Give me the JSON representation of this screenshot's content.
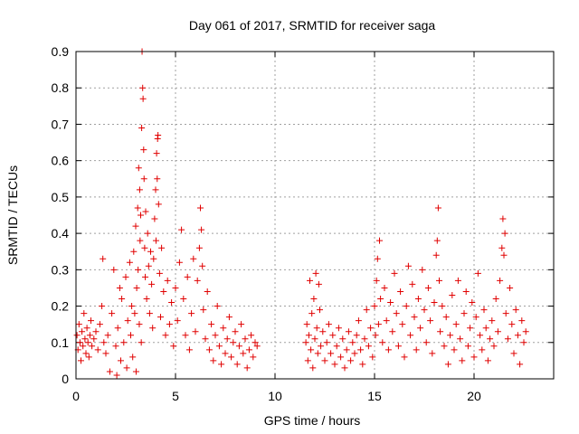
{
  "chart_data": {
    "type": "scatter",
    "title": "Day 061 of 2017, SRMTID for receiver saga",
    "xlabel": "GPS time / hours",
    "ylabel": "SRMTID / TECUs",
    "xlim": [
      0,
      24
    ],
    "ylim": [
      0,
      0.9
    ],
    "xticks": [
      0,
      5,
      10,
      15,
      20
    ],
    "yticks": [
      0,
      0.1,
      0.2,
      0.3,
      0.4,
      0.5,
      0.6,
      0.7,
      0.8,
      0.9
    ],
    "xtick_labels": [
      "0",
      "5",
      "10",
      "15",
      "20"
    ],
    "ytick_labels": [
      "0",
      "0.1",
      "0.2",
      "0.3",
      "0.4",
      "0.5",
      "0.6",
      "0.7",
      "0.8",
      "0.9"
    ],
    "grid": true,
    "color": "#e00000",
    "marker": "+",
    "series": [
      {
        "name": "SRMTID",
        "points": [
          [
            0.05,
            0.12
          ],
          [
            0.1,
            0.08
          ],
          [
            0.15,
            0.15
          ],
          [
            0.2,
            0.1
          ],
          [
            0.25,
            0.05
          ],
          [
            0.3,
            0.13
          ],
          [
            0.35,
            0.09
          ],
          [
            0.4,
            0.18
          ],
          [
            0.45,
            0.11
          ],
          [
            0.5,
            0.07
          ],
          [
            0.55,
            0.14
          ],
          [
            0.6,
            0.1
          ],
          [
            0.65,
            0.06
          ],
          [
            0.7,
            0.12
          ],
          [
            0.75,
            0.16
          ],
          [
            0.8,
            0.09
          ],
          [
            0.9,
            0.11
          ],
          [
            1.0,
            0.13
          ],
          [
            1.1,
            0.08
          ],
          [
            1.2,
            0.15
          ],
          [
            1.3,
            0.2
          ],
          [
            1.35,
            0.33
          ],
          [
            1.4,
            0.1
          ],
          [
            1.5,
            0.07
          ],
          [
            1.6,
            0.12
          ],
          [
            1.7,
            0.02
          ],
          [
            1.8,
            0.18
          ],
          [
            1.9,
            0.3
          ],
          [
            2.0,
            0.09
          ],
          [
            2.05,
            0.01
          ],
          [
            2.1,
            0.14
          ],
          [
            2.2,
            0.25
          ],
          [
            2.25,
            0.05
          ],
          [
            2.3,
            0.22
          ],
          [
            2.4,
            0.1
          ],
          [
            2.5,
            0.28
          ],
          [
            2.55,
            0.03
          ],
          [
            2.6,
            0.16
          ],
          [
            2.7,
            0.32
          ],
          [
            2.75,
            0.12
          ],
          [
            2.8,
            0.2
          ],
          [
            2.85,
            0.06
          ],
          [
            2.9,
            0.35
          ],
          [
            2.95,
            0.18
          ],
          [
            3.0,
            0.42
          ],
          [
            3.02,
            0.02
          ],
          [
            3.05,
            0.25
          ],
          [
            3.1,
            0.47
          ],
          [
            3.12,
            0.3
          ],
          [
            3.15,
            0.58
          ],
          [
            3.18,
            0.15
          ],
          [
            3.2,
            0.52
          ],
          [
            3.22,
            0.38
          ],
          [
            3.25,
            0.45
          ],
          [
            3.28,
            0.1
          ],
          [
            3.3,
            0.69
          ],
          [
            3.32,
            0.9
          ],
          [
            3.35,
            0.8
          ],
          [
            3.37,
            0.77
          ],
          [
            3.4,
            0.63
          ],
          [
            3.42,
            0.55
          ],
          [
            3.45,
            0.36
          ],
          [
            3.48,
            0.28
          ],
          [
            3.5,
            0.46
          ],
          [
            3.55,
            0.22
          ],
          [
            3.6,
            0.4
          ],
          [
            3.65,
            0.31
          ],
          [
            3.7,
            0.18
          ],
          [
            3.75,
            0.35
          ],
          [
            3.8,
            0.26
          ],
          [
            3.85,
            0.14
          ],
          [
            3.9,
            0.33
          ],
          [
            3.95,
            0.44
          ],
          [
            4.0,
            0.52
          ],
          [
            4.02,
            0.38
          ],
          [
            4.05,
            0.62
          ],
          [
            4.08,
            0.55
          ],
          [
            4.1,
            0.66
          ],
          [
            4.12,
            0.67
          ],
          [
            4.15,
            0.48
          ],
          [
            4.2,
            0.29
          ],
          [
            4.25,
            0.17
          ],
          [
            4.3,
            0.36
          ],
          [
            4.4,
            0.24
          ],
          [
            4.5,
            0.12
          ],
          [
            4.6,
            0.27
          ],
          [
            4.7,
            0.15
          ],
          [
            4.8,
            0.21
          ],
          [
            4.9,
            0.09
          ],
          [
            5.0,
            0.25
          ],
          [
            5.1,
            0.16
          ],
          [
            5.2,
            0.32
          ],
          [
            5.3,
            0.41
          ],
          [
            5.4,
            0.22
          ],
          [
            5.5,
            0.12
          ],
          [
            5.6,
            0.28
          ],
          [
            5.7,
            0.08
          ],
          [
            5.8,
            0.18
          ],
          [
            5.9,
            0.33
          ],
          [
            6.0,
            0.13
          ],
          [
            6.1,
            0.27
          ],
          [
            6.2,
            0.36
          ],
          [
            6.25,
            0.47
          ],
          [
            6.3,
            0.41
          ],
          [
            6.35,
            0.31
          ],
          [
            6.4,
            0.19
          ],
          [
            6.5,
            0.11
          ],
          [
            6.6,
            0.24
          ],
          [
            6.7,
            0.08
          ],
          [
            6.8,
            0.15
          ],
          [
            6.9,
            0.05
          ],
          [
            7.0,
            0.12
          ],
          [
            7.1,
            0.2
          ],
          [
            7.2,
            0.09
          ],
          [
            7.3,
            0.04
          ],
          [
            7.4,
            0.14
          ],
          [
            7.5,
            0.07
          ],
          [
            7.6,
            0.11
          ],
          [
            7.7,
            0.17
          ],
          [
            7.8,
            0.06
          ],
          [
            7.9,
            0.1
          ],
          [
            8.0,
            0.13
          ],
          [
            8.1,
            0.04
          ],
          [
            8.2,
            0.09
          ],
          [
            8.3,
            0.15
          ],
          [
            8.4,
            0.07
          ],
          [
            8.5,
            0.11
          ],
          [
            8.6,
            0.03
          ],
          [
            8.7,
            0.08
          ],
          [
            8.8,
            0.12
          ],
          [
            8.9,
            0.06
          ],
          [
            9.0,
            0.1
          ],
          [
            9.1,
            0.09
          ],
          [
            11.55,
            0.1
          ],
          [
            11.6,
            0.15
          ],
          [
            11.65,
            0.05
          ],
          [
            11.7,
            0.12
          ],
          [
            11.75,
            0.27
          ],
          [
            11.8,
            0.08
          ],
          [
            11.85,
            0.18
          ],
          [
            11.9,
            0.03
          ],
          [
            11.95,
            0.22
          ],
          [
            12.0,
            0.11
          ],
          [
            12.05,
            0.29
          ],
          [
            12.1,
            0.14
          ],
          [
            12.15,
            0.07
          ],
          [
            12.2,
            0.26
          ],
          [
            12.25,
            0.19
          ],
          [
            12.3,
            0.09
          ],
          [
            12.4,
            0.13
          ],
          [
            12.5,
            0.05
          ],
          [
            12.6,
            0.1
          ],
          [
            12.7,
            0.15
          ],
          [
            12.8,
            0.07
          ],
          [
            12.9,
            0.12
          ],
          [
            13.0,
            0.04
          ],
          [
            13.1,
            0.09
          ],
          [
            13.2,
            0.14
          ],
          [
            13.3,
            0.06
          ],
          [
            13.4,
            0.11
          ],
          [
            13.5,
            0.03
          ],
          [
            13.6,
            0.08
          ],
          [
            13.7,
            0.13
          ],
          [
            13.8,
            0.05
          ],
          [
            13.9,
            0.1
          ],
          [
            14.0,
            0.07
          ],
          [
            14.1,
            0.12
          ],
          [
            14.2,
            0.16
          ],
          [
            14.3,
            0.08
          ],
          [
            14.4,
            0.04
          ],
          [
            14.5,
            0.11
          ],
          [
            14.6,
            0.19
          ],
          [
            14.7,
            0.09
          ],
          [
            14.8,
            0.14
          ],
          [
            14.9,
            0.06
          ],
          [
            15.0,
            0.2
          ],
          [
            15.05,
            0.12
          ],
          [
            15.1,
            0.27
          ],
          [
            15.15,
            0.33
          ],
          [
            15.2,
            0.15
          ],
          [
            15.25,
            0.38
          ],
          [
            15.3,
            0.22
          ],
          [
            15.4,
            0.1
          ],
          [
            15.5,
            0.25
          ],
          [
            15.6,
            0.16
          ],
          [
            15.7,
            0.08
          ],
          [
            15.8,
            0.21
          ],
          [
            15.9,
            0.13
          ],
          [
            16.0,
            0.29
          ],
          [
            16.1,
            0.18
          ],
          [
            16.2,
            0.09
          ],
          [
            16.3,
            0.24
          ],
          [
            16.4,
            0.15
          ],
          [
            16.5,
            0.06
          ],
          [
            16.6,
            0.2
          ],
          [
            16.7,
            0.31
          ],
          [
            16.8,
            0.12
          ],
          [
            16.9,
            0.26
          ],
          [
            17.0,
            0.17
          ],
          [
            17.1,
            0.08
          ],
          [
            17.2,
            0.22
          ],
          [
            17.3,
            0.14
          ],
          [
            17.4,
            0.3
          ],
          [
            17.5,
            0.19
          ],
          [
            17.6,
            0.1
          ],
          [
            17.7,
            0.25
          ],
          [
            17.8,
            0.16
          ],
          [
            17.9,
            0.07
          ],
          [
            18.0,
            0.21
          ],
          [
            18.1,
            0.34
          ],
          [
            18.15,
            0.38
          ],
          [
            18.2,
            0.47
          ],
          [
            18.25,
            0.27
          ],
          [
            18.3,
            0.13
          ],
          [
            18.4,
            0.2
          ],
          [
            18.5,
            0.09
          ],
          [
            18.6,
            0.17
          ],
          [
            18.7,
            0.04
          ],
          [
            18.8,
            0.12
          ],
          [
            18.9,
            0.23
          ],
          [
            19.0,
            0.08
          ],
          [
            19.1,
            0.15
          ],
          [
            19.2,
            0.27
          ],
          [
            19.3,
            0.11
          ],
          [
            19.4,
            0.05
          ],
          [
            19.5,
            0.18
          ],
          [
            19.6,
            0.24
          ],
          [
            19.7,
            0.09
          ],
          [
            19.8,
            0.14
          ],
          [
            19.9,
            0.21
          ],
          [
            20.0,
            0.06
          ],
          [
            20.1,
            0.17
          ],
          [
            20.2,
            0.29
          ],
          [
            20.3,
            0.12
          ],
          [
            20.4,
            0.08
          ],
          [
            20.5,
            0.19
          ],
          [
            20.6,
            0.14
          ],
          [
            20.7,
            0.05
          ],
          [
            20.8,
            0.11
          ],
          [
            20.9,
            0.16
          ],
          [
            21.0,
            0.09
          ],
          [
            21.1,
            0.22
          ],
          [
            21.2,
            0.13
          ],
          [
            21.3,
            0.27
          ],
          [
            21.4,
            0.36
          ],
          [
            21.45,
            0.44
          ],
          [
            21.5,
            0.34
          ],
          [
            21.55,
            0.4
          ],
          [
            21.6,
            0.18
          ],
          [
            21.7,
            0.11
          ],
          [
            21.8,
            0.25
          ],
          [
            21.9,
            0.15
          ],
          [
            22.0,
            0.07
          ],
          [
            22.1,
            0.19
          ],
          [
            22.2,
            0.12
          ],
          [
            22.3,
            0.04
          ],
          [
            22.4,
            0.16
          ],
          [
            22.5,
            0.1
          ],
          [
            22.6,
            0.13
          ]
        ]
      }
    ]
  }
}
